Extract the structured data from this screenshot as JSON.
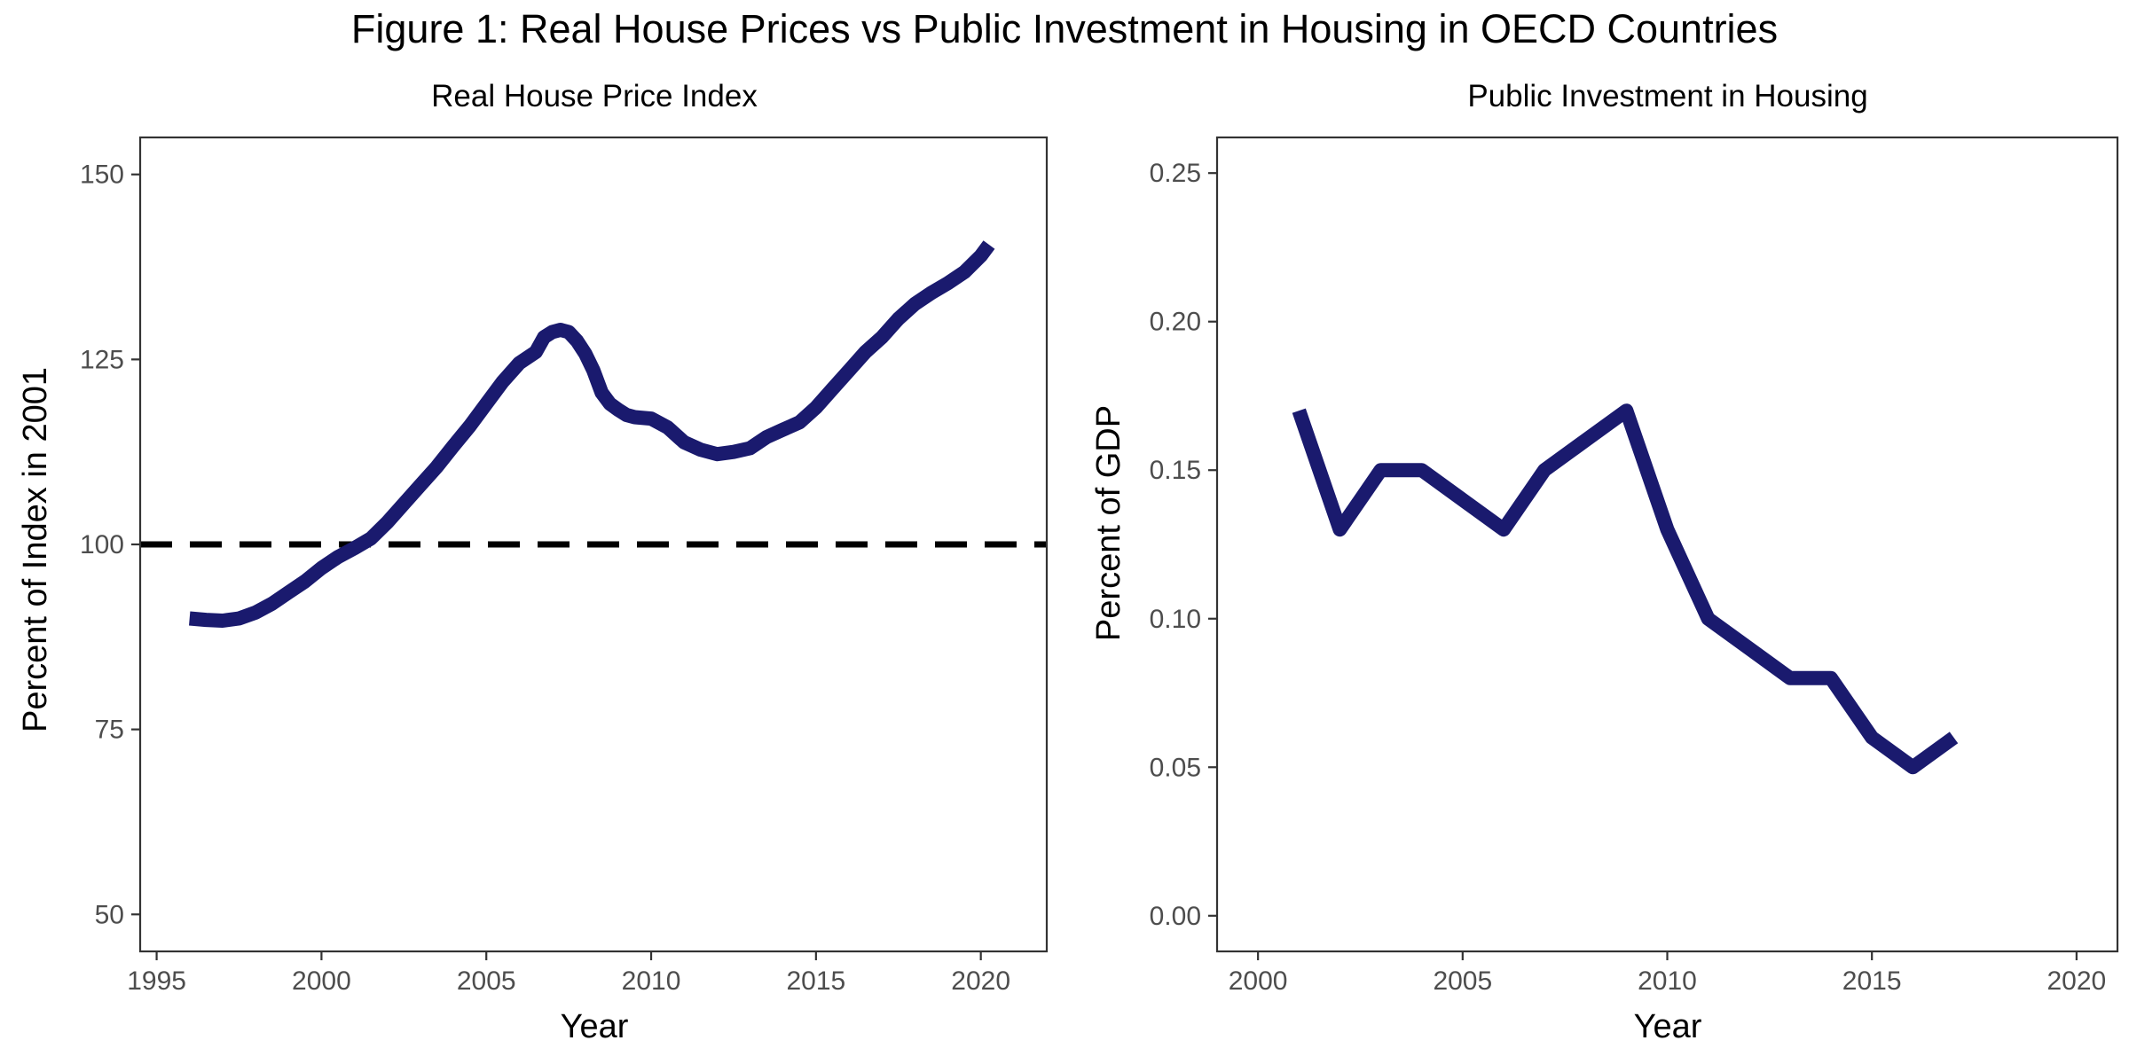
{
  "figure_title": "Figure 1: Real House Prices vs Public Investment in Housing in OECD Countries",
  "colors": {
    "line": "#1a1a6e",
    "reference": "#000000",
    "frame": "#333333",
    "tick_text": "#4d4d4d"
  },
  "chart_data": [
    {
      "type": "line",
      "title": "Real House Price Index",
      "xlabel": "Year",
      "ylabel": "Percent of Index in 2001",
      "xlim": [
        1994.5,
        2022
      ],
      "ylim": [
        45,
        155
      ],
      "xticks": [
        1995,
        2000,
        2005,
        2010,
        2015,
        2020
      ],
      "yticks": [
        50,
        75,
        100,
        125,
        150
      ],
      "grid": false,
      "reference_line": {
        "y": 100,
        "style": "dashed"
      },
      "series": [
        {
          "x": [
            1996.0,
            1996.5,
            1997.0,
            1997.5,
            1998.0,
            1998.5,
            1999.0,
            1999.5,
            2000.0,
            2000.5,
            2001.0,
            2001.5,
            2002.0,
            2002.5,
            2003.0,
            2003.5,
            2004.0,
            2004.5,
            2005.0,
            2005.5,
            2006.0,
            2006.5,
            2006.75,
            2007.0,
            2007.25,
            2007.5,
            2007.75,
            2008.0,
            2008.25,
            2008.5,
            2008.75,
            2009.0,
            2009.25,
            2009.5,
            2010.0,
            2010.5,
            2011.0,
            2011.5,
            2012.0,
            2012.5,
            2013.0,
            2013.5,
            2014.0,
            2014.5,
            2015.0,
            2015.5,
            2016.0,
            2016.5,
            2017.0,
            2017.5,
            2018.0,
            2018.5,
            2019.0,
            2019.5,
            2020.0,
            2020.25
          ],
          "y": [
            90.0,
            89.8,
            89.7,
            90.0,
            90.8,
            92.0,
            93.5,
            95.0,
            96.8,
            98.3,
            99.5,
            100.8,
            103.0,
            105.5,
            108.0,
            110.5,
            113.3,
            116.0,
            119.0,
            122.0,
            124.5,
            126.0,
            128.0,
            128.7,
            129.0,
            128.7,
            127.5,
            125.8,
            123.5,
            120.5,
            119.0,
            118.2,
            117.5,
            117.2,
            117.0,
            115.8,
            113.8,
            112.8,
            112.2,
            112.5,
            113.0,
            114.5,
            115.5,
            116.5,
            118.5,
            121.0,
            123.5,
            126.0,
            128.0,
            130.5,
            132.5,
            134.0,
            135.3,
            136.8,
            139.0,
            140.5
          ]
        }
      ]
    },
    {
      "type": "line",
      "title": "Public Investment in Housing",
      "xlabel": "Year",
      "ylabel": "Percent of GDP",
      "xlim": [
        1999,
        2021
      ],
      "ylim": [
        -0.012,
        0.262
      ],
      "xticks": [
        2000,
        2005,
        2010,
        2015,
        2020
      ],
      "yticks": [
        0.0,
        0.05,
        0.1,
        0.15,
        0.2,
        0.25
      ],
      "ytick_labels": [
        "0.00",
        "0.05",
        "0.10",
        "0.15",
        "0.20",
        "0.25"
      ],
      "grid": false,
      "series": [
        {
          "x": [
            2001,
            2002,
            2003,
            2004,
            2005,
            2006,
            2007,
            2008,
            2009,
            2010,
            2011,
            2012,
            2013,
            2014,
            2015,
            2016,
            2017
          ],
          "y": [
            0.17,
            0.13,
            0.15,
            0.15,
            0.14,
            0.13,
            0.15,
            0.16,
            0.17,
            0.13,
            0.1,
            0.09,
            0.08,
            0.08,
            0.06,
            0.05,
            0.06
          ]
        }
      ]
    }
  ]
}
